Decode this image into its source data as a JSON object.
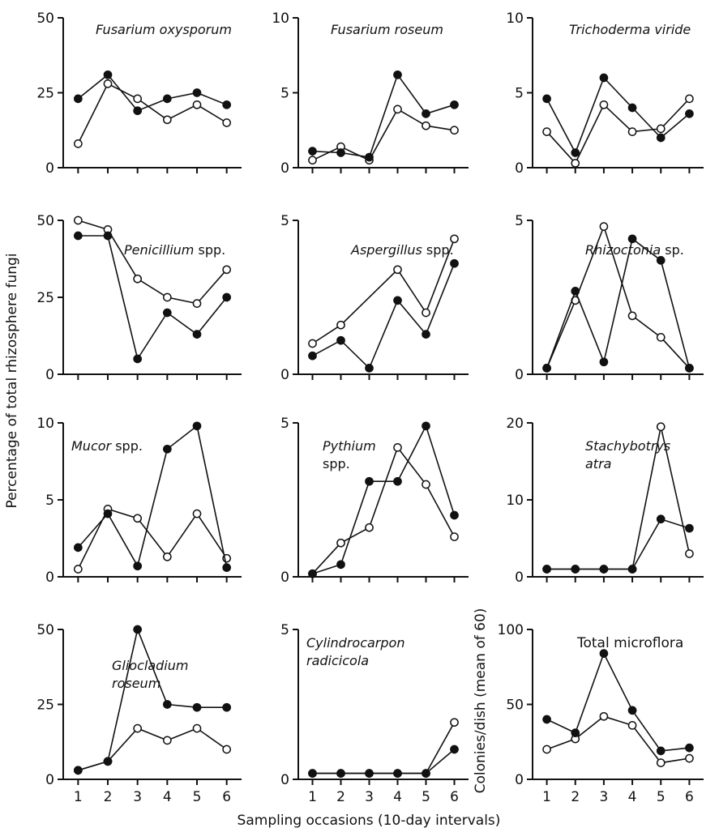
{
  "figure": {
    "ylabel_left": "Percentage of total rhizosphere fungi",
    "ylabel_right": "Colonies/dish (mean of 60)",
    "xlabel": "Sampling occasions (10-day intervals)",
    "x_tick_labels": [
      "1",
      "2",
      "3",
      "4",
      "5",
      "6"
    ]
  },
  "chart_data": [
    {
      "type": "line",
      "title": "Fusarium oxysporum",
      "title_lines": [
        "Fusarium oxysporum"
      ],
      "title_style": "italic",
      "x": [
        1,
        2,
        3,
        4,
        5,
        6
      ],
      "ylim": [
        0,
        50
      ],
      "yticks": [
        0,
        25,
        50
      ],
      "series": [
        {
          "marker": "filled",
          "values": [
            23,
            31,
            19,
            23,
            25,
            21
          ]
        },
        {
          "marker": "open",
          "values": [
            8,
            28,
            23,
            16,
            21,
            15
          ]
        }
      ]
    },
    {
      "type": "line",
      "title": "Fusarium roseum",
      "title_lines": [
        "Fusarium roseum"
      ],
      "title_style": "italic",
      "x": [
        1,
        2,
        3,
        4,
        5,
        6
      ],
      "ylim": [
        0,
        10
      ],
      "yticks": [
        0,
        5,
        10
      ],
      "series": [
        {
          "marker": "filled",
          "values": [
            1.1,
            1.0,
            0.7,
            6.2,
            3.6,
            4.2
          ]
        },
        {
          "marker": "open",
          "values": [
            0.5,
            1.4,
            0.5,
            3.9,
            2.8,
            2.5
          ]
        }
      ]
    },
    {
      "type": "line",
      "title": "Trichoderma viride",
      "title_lines": [
        "Trichoderma viride"
      ],
      "title_style": "italic",
      "x": [
        1,
        2,
        3,
        4,
        5,
        6
      ],
      "ylim": [
        0,
        10
      ],
      "yticks": [
        0,
        5,
        10
      ],
      "series": [
        {
          "marker": "filled",
          "values": [
            4.6,
            1.0,
            6.0,
            4.0,
            2.0,
            3.6
          ]
        },
        {
          "marker": "open",
          "values": [
            2.4,
            0.3,
            4.2,
            2.4,
            2.6,
            4.6
          ]
        }
      ]
    },
    {
      "type": "line",
      "title": "Penicillium spp.",
      "title_lines": [
        "Penicillium spp."
      ],
      "title_style": "italic-spp",
      "x": [
        1,
        2,
        3,
        4,
        5,
        6
      ],
      "ylim": [
        0,
        50
      ],
      "yticks": [
        0,
        25,
        50
      ],
      "series": [
        {
          "marker": "filled",
          "values": [
            45,
            45,
            5,
            20,
            13,
            25
          ]
        },
        {
          "marker": "open",
          "values": [
            50,
            47,
            31,
            25,
            23,
            34
          ]
        }
      ]
    },
    {
      "type": "line",
      "title": "Aspergillus spp.",
      "title_lines": [
        "Aspergillus spp."
      ],
      "title_style": "italic-spp",
      "x": [
        1,
        2,
        3,
        4,
        5,
        6
      ],
      "ylim": [
        0,
        5
      ],
      "yticks": [
        0,
        5
      ],
      "series": [
        {
          "marker": "filled",
          "values": [
            0.6,
            1.1,
            0.2,
            2.4,
            1.3,
            3.6
          ]
        },
        {
          "marker": "open",
          "values": [
            1.0,
            1.6,
            null,
            3.4,
            2.0,
            4.4
          ]
        }
      ]
    },
    {
      "type": "line",
      "title": "Rhizoctonia sp.",
      "title_lines": [
        "Rhizoctonia sp."
      ],
      "title_style": "italic-spp",
      "x": [
        1,
        2,
        3,
        4,
        5,
        6
      ],
      "ylim": [
        0,
        5
      ],
      "yticks": [
        0,
        5
      ],
      "series": [
        {
          "marker": "filled",
          "values": [
            0.2,
            2.7,
            0.4,
            4.4,
            3.7,
            0.2
          ]
        },
        {
          "marker": "open",
          "values": [
            0.2,
            2.4,
            4.8,
            1.9,
            1.2,
            0.2
          ]
        }
      ]
    },
    {
      "type": "line",
      "title": "Mucor spp.",
      "title_lines": [
        "Mucor spp."
      ],
      "title_style": "italic-spp",
      "x": [
        1,
        2,
        3,
        4,
        5,
        6
      ],
      "ylim": [
        0,
        10
      ],
      "yticks": [
        0,
        5,
        10
      ],
      "series": [
        {
          "marker": "filled",
          "values": [
            1.9,
            4.1,
            0.7,
            8.3,
            9.8,
            0.6
          ]
        },
        {
          "marker": "open",
          "values": [
            0.5,
            4.4,
            3.8,
            1.3,
            4.1,
            1.2
          ]
        }
      ]
    },
    {
      "type": "line",
      "title": "Pythium spp.",
      "title_lines": [
        "Pythium",
        "spp."
      ],
      "title_style": "italic-spp",
      "x": [
        1,
        2,
        3,
        4,
        5,
        6
      ],
      "ylim": [
        0,
        5
      ],
      "yticks": [
        0,
        5
      ],
      "series": [
        {
          "marker": "filled",
          "values": [
            0.1,
            0.4,
            3.1,
            3.1,
            4.9,
            2.0
          ]
        },
        {
          "marker": "open",
          "values": [
            0.1,
            1.1,
            1.6,
            4.2,
            3.0,
            1.3
          ]
        }
      ]
    },
    {
      "type": "line",
      "title": "Stachybotrys atra",
      "title_lines": [
        "Stachybotrys",
        "atra"
      ],
      "title_style": "italic",
      "x": [
        1,
        2,
        3,
        4,
        5,
        6
      ],
      "ylim": [
        0,
        20
      ],
      "yticks": [
        0,
        10,
        20
      ],
      "series": [
        {
          "marker": "filled",
          "values": [
            1,
            1,
            1,
            1,
            7.5,
            6.3
          ]
        },
        {
          "marker": "open",
          "values": [
            1,
            1,
            1,
            1,
            19.5,
            3
          ]
        }
      ]
    },
    {
      "type": "line",
      "title": "Gliocladium roseum",
      "title_lines": [
        "Gliocladium",
        "roseum"
      ],
      "title_style": "italic",
      "x": [
        1,
        2,
        3,
        4,
        5,
        6
      ],
      "ylim": [
        0,
        50
      ],
      "yticks": [
        0,
        25,
        50
      ],
      "series": [
        {
          "marker": "filled",
          "values": [
            3,
            6,
            50,
            25,
            24,
            24
          ]
        },
        {
          "marker": "open",
          "values": [
            3,
            6,
            17,
            13,
            17,
            10
          ]
        }
      ]
    },
    {
      "type": "line",
      "title": "Cylindrocarpon radicicola",
      "title_lines": [
        "Cylindrocarpon",
        "radicicola"
      ],
      "title_style": "italic",
      "x": [
        1,
        2,
        3,
        4,
        5,
        6
      ],
      "ylim": [
        0,
        5
      ],
      "yticks": [
        0,
        5
      ],
      "series": [
        {
          "marker": "filled",
          "values": [
            0.2,
            0.2,
            0.2,
            0.2,
            0.2,
            1.0
          ]
        },
        {
          "marker": "open",
          "values": [
            0.2,
            0.2,
            0.2,
            0.2,
            0.2,
            1.9
          ]
        }
      ]
    },
    {
      "type": "line",
      "title": "Total microflora",
      "title_lines": [
        "Total microflora"
      ],
      "title_style": "upright",
      "x": [
        1,
        2,
        3,
        4,
        5,
        6
      ],
      "ylim": [
        0,
        100
      ],
      "yticks": [
        0,
        50,
        100
      ],
      "series": [
        {
          "marker": "filled",
          "values": [
            40,
            31,
            84,
            46,
            19,
            21
          ]
        },
        {
          "marker": "open",
          "values": [
            20,
            27,
            42,
            36,
            11,
            14
          ]
        }
      ]
    }
  ]
}
